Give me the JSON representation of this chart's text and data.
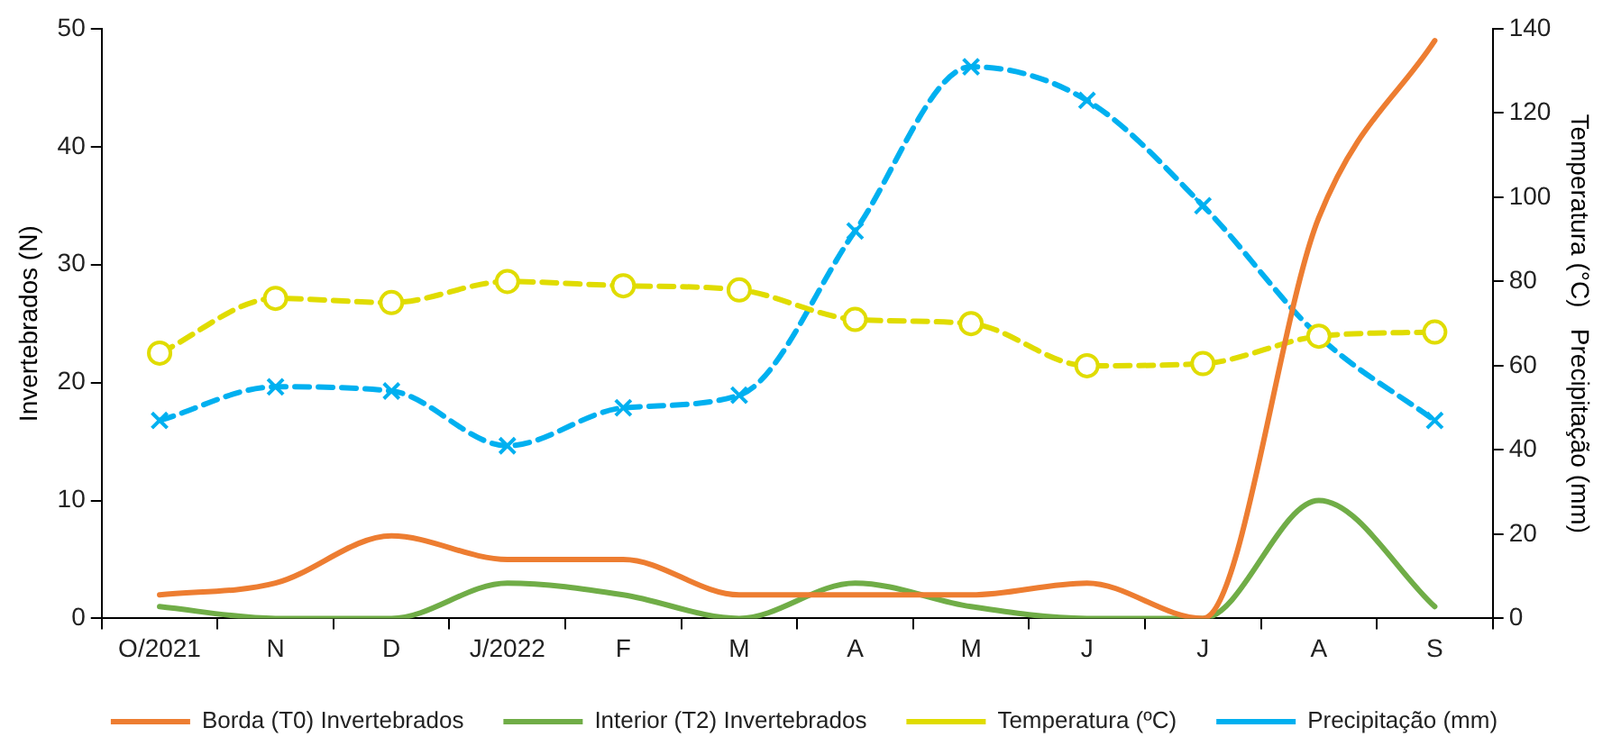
{
  "chart_data": {
    "type": "line",
    "categories": [
      "O/2021",
      "N",
      "D",
      "J/2022",
      "F",
      "M",
      "A",
      "M",
      "J",
      "J",
      "A",
      "S"
    ],
    "ylabel": "Invertebrados (N)",
    "y2label": "Temperatura (°C)   Precipitação (mm)",
    "ylim": [
      0,
      50
    ],
    "yticks": [
      0,
      10,
      20,
      30,
      40,
      50
    ],
    "y2lim": [
      0,
      140
    ],
    "y2ticks": [
      0,
      20,
      40,
      60,
      80,
      100,
      120,
      140
    ],
    "grid": false,
    "legend": "bottom",
    "series": [
      {
        "name": "Borda (T0) Invertebrados",
        "color": "#ed7d31",
        "marker": "none",
        "line_style": "solid",
        "values": [
          2,
          3,
          7,
          5,
          5,
          2,
          2,
          2,
          3,
          0,
          34,
          49
        ]
      },
      {
        "name": "Interior (T2) Invertebrados",
        "color": "#70ad47",
        "marker": "none",
        "line_style": "solid",
        "values": [
          1,
          0,
          0,
          3,
          2,
          0,
          3,
          1,
          0,
          0,
          10,
          1
        ]
      },
      {
        "name": "Temperatura (ºC)",
        "color": "#e0dc00",
        "marker": "circle",
        "line_style": "dashed",
        "axis": "y2",
        "values": [
          63,
          76,
          75,
          80,
          79,
          78,
          71,
          70,
          60,
          60.5,
          67,
          68
        ]
      },
      {
        "name": "Precipitação (mm)",
        "color": "#00b0f0",
        "marker": "cross",
        "line_style": "dashed",
        "axis": "y2",
        "values": [
          47,
          55,
          54,
          41,
          50,
          53,
          92,
          131,
          123,
          98,
          67,
          47
        ]
      }
    ]
  }
}
